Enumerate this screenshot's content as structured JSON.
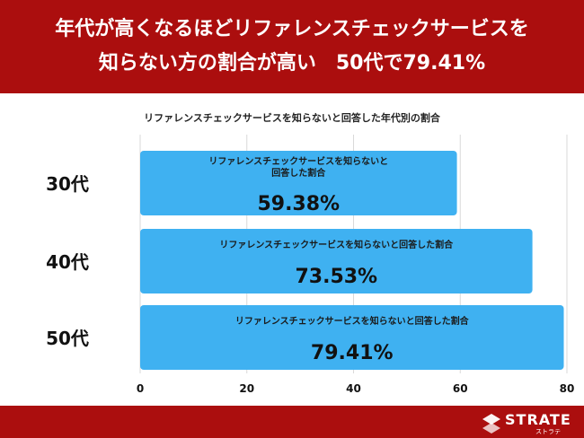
{
  "header": {
    "line1": "年代が高くなるほどリファレンスチェックサービスを",
    "line2": "知らない方の割合が高い　50代で79.41%"
  },
  "chart_data": {
    "type": "bar",
    "orientation": "horizontal",
    "title": "リファレンスチェックサービスを知らないと回答した年代別の割合",
    "categories": [
      "30代",
      "40代",
      "50代"
    ],
    "values": [
      59.38,
      73.53,
      79.41
    ],
    "value_labels": [
      "59.38%",
      "73.53%",
      "79.41%"
    ],
    "bar_labels": [
      [
        "リファレンスチェックサービスを知らないと",
        "回答した割合"
      ],
      [
        "リファレンスチェックサービスを知らないと回答した割合"
      ],
      [
        "リファレンスチェックサービスを知らないと回答した割合"
      ]
    ],
    "xlim": [
      0,
      80
    ],
    "xticks": [
      0,
      20,
      40,
      60,
      80
    ],
    "xlabel": "",
    "ylabel": "",
    "bar_color": "#3fb1f1",
    "grid": true
  },
  "footer": {
    "brand": "STRATE",
    "brand_sub": "ストラテ"
  },
  "colors": {
    "header_bg": "#ab0e0e",
    "footer_bg": "#ab0e0e"
  }
}
